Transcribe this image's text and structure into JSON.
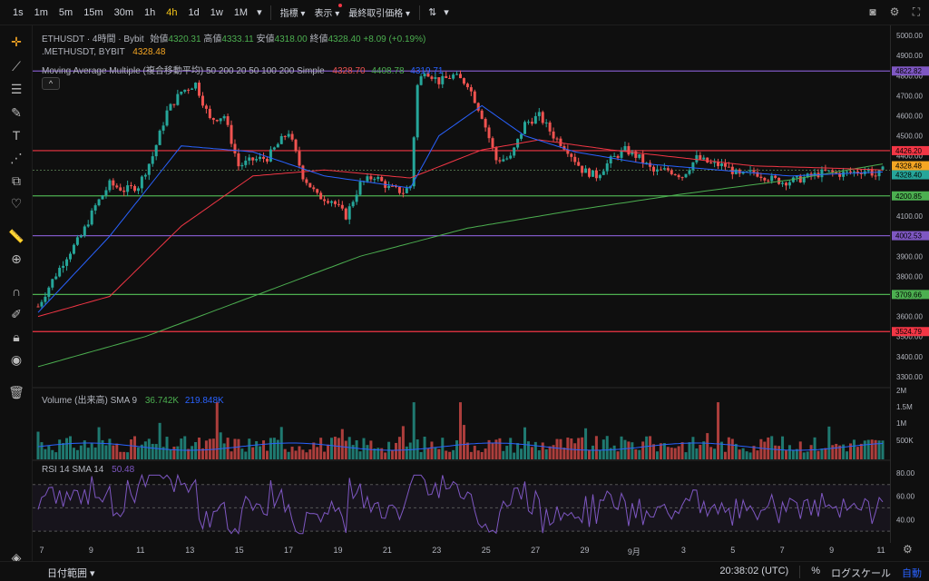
{
  "toolbar": {
    "timeframes": [
      "1s",
      "1m",
      "5m",
      "15m",
      "30m",
      "1h",
      "4h",
      "1d",
      "1w",
      "1M"
    ],
    "active_timeframe": "4h",
    "indicators_label": "指標",
    "display_label": "表示",
    "price_type_label": "最終取引価格"
  },
  "legend": {
    "symbol_line": "ETHUSDT · 4時間 · Bybit",
    "open_label": "始値",
    "open": "4320.31",
    "high_label": "高値",
    "high": "4333.11",
    "low_label": "安値",
    "low": "4318.00",
    "close_label": "終値",
    "close": "4328.40",
    "change": "+8.09 (+0.19%)",
    "compare_symbol": ".METHUSDT, BYBIT",
    "compare_value": "4328.48",
    "ma_label": "Moving Average Multiple (複合移動平均) 50 200 20 50 100 200 Simple",
    "ma_v1": "4328.70",
    "ma_v2": "4408.78",
    "ma_v3": "4319.71",
    "collapse": "^"
  },
  "volume": {
    "label": "Volume (出来高) SMA 9",
    "v1": "36.742K",
    "v2": "219.848K",
    "axis": [
      "2M",
      "1.5M",
      "1M",
      "500K"
    ]
  },
  "rsi": {
    "label": "RSI 14 SMA 14",
    "value": "50.48",
    "axis": [
      "80.00",
      "60.00",
      "40.00"
    ]
  },
  "price_axis": [
    "5000.00",
    "4900.00",
    "4800.00",
    "4700.00",
    "4600.00",
    "4500.00",
    "4400.00",
    "4300.00",
    "4200.00",
    "4100.00",
    "4000.00",
    "3900.00",
    "3800.00",
    "3700.00",
    "3600.00",
    "3500.00",
    "3400.00",
    "3300.00"
  ],
  "levels": [
    {
      "price": 4822.82,
      "label": "4822.82",
      "color": "#7e57c2"
    },
    {
      "price": 4426.2,
      "label": "4426.20",
      "color": "#f23645"
    },
    {
      "price": 4328.48,
      "label": "4328.48",
      "color": "#f5a623"
    },
    {
      "price": 4328.4,
      "label": "4328.40",
      "color": "#26a69a"
    },
    {
      "price": 4200.85,
      "label": "4200.85",
      "color": "#4caf50"
    },
    {
      "price": 4002.53,
      "label": "4002.53",
      "color": "#7e57c2"
    },
    {
      "price": 3709.66,
      "label": "3709.66",
      "color": "#4caf50"
    },
    {
      "price": 3524.79,
      "label": "3524.79",
      "color": "#f23645"
    }
  ],
  "dates": [
    "7",
    "9",
    "11",
    "13",
    "15",
    "17",
    "19",
    "21",
    "23",
    "25",
    "27",
    "29",
    "9月",
    "3",
    "5",
    "7",
    "9",
    "11"
  ],
  "bottom": {
    "date_range": "日付範囲",
    "time": "20:38:02 (UTC)",
    "percent": "%",
    "log": "ログスケール",
    "auto": "自動"
  },
  "colors": {
    "up": "#26a69a",
    "down": "#ef5350",
    "ma_blue": "#2962ff",
    "ma_red": "#f23645",
    "ma_green": "#4caf50",
    "rsi": "#7e57c2"
  },
  "chart_data": {
    "type": "candlestick",
    "price_anchors": [
      [
        0,
        3650
      ],
      [
        4,
        3780
      ],
      [
        8,
        3900
      ],
      [
        12,
        4000
      ],
      [
        16,
        4150
      ],
      [
        20,
        4260
      ],
      [
        24,
        4230
      ],
      [
        28,
        4250
      ],
      [
        32,
        4400
      ],
      [
        36,
        4620
      ],
      [
        40,
        4720
      ],
      [
        44,
        4760
      ],
      [
        48,
        4580
      ],
      [
        52,
        4600
      ],
      [
        56,
        4350
      ],
      [
        60,
        4380
      ],
      [
        64,
        4390
      ],
      [
        68,
        4480
      ],
      [
        70,
        4520
      ],
      [
        74,
        4300
      ],
      [
        78,
        4200
      ],
      [
        82,
        4180
      ],
      [
        86,
        4100
      ],
      [
        90,
        4260
      ],
      [
        94,
        4300
      ],
      [
        98,
        4240
      ],
      [
        102,
        4220
      ],
      [
        104,
        4250
      ],
      [
        106,
        4750
      ],
      [
        108,
        4830
      ],
      [
        112,
        4770
      ],
      [
        116,
        4800
      ],
      [
        120,
        4760
      ],
      [
        124,
        4600
      ],
      [
        128,
        4380
      ],
      [
        132,
        4390
      ],
      [
        136,
        4560
      ],
      [
        140,
        4600
      ],
      [
        144,
        4500
      ],
      [
        148,
        4430
      ],
      [
        152,
        4330
      ],
      [
        156,
        4300
      ],
      [
        160,
        4380
      ],
      [
        164,
        4430
      ],
      [
        168,
        4390
      ],
      [
        172,
        4320
      ],
      [
        176,
        4330
      ],
      [
        180,
        4300
      ],
      [
        184,
        4390
      ],
      [
        188,
        4360
      ],
      [
        192,
        4350
      ],
      [
        196,
        4300
      ],
      [
        200,
        4320
      ],
      [
        204,
        4290
      ],
      [
        208,
        4270
      ],
      [
        212,
        4280
      ],
      [
        216,
        4300
      ],
      [
        220,
        4320
      ],
      [
        224,
        4310
      ],
      [
        228,
        4320
      ],
      [
        232,
        4330
      ],
      [
        234,
        4300
      ],
      [
        236,
        4328
      ]
    ],
    "ma_fast_anchors": [
      [
        0,
        3620
      ],
      [
        20,
        4000
      ],
      [
        40,
        4450
      ],
      [
        60,
        4420
      ],
      [
        80,
        4300
      ],
      [
        104,
        4240
      ],
      [
        112,
        4500
      ],
      [
        124,
        4650
      ],
      [
        136,
        4500
      ],
      [
        150,
        4420
      ],
      [
        170,
        4360
      ],
      [
        190,
        4330
      ],
      [
        210,
        4300
      ],
      [
        236,
        4320
      ]
    ],
    "ma_mid_anchors": [
      [
        0,
        3600
      ],
      [
        20,
        3700
      ],
      [
        40,
        4050
      ],
      [
        60,
        4300
      ],
      [
        80,
        4330
      ],
      [
        104,
        4290
      ],
      [
        124,
        4430
      ],
      [
        140,
        4480
      ],
      [
        160,
        4430
      ],
      [
        180,
        4390
      ],
      [
        200,
        4350
      ],
      [
        220,
        4340
      ],
      [
        236,
        4330
      ]
    ],
    "ma_slow_anchors": [
      [
        0,
        3350
      ],
      [
        30,
        3500
      ],
      [
        60,
        3700
      ],
      [
        90,
        3900
      ],
      [
        120,
        4040
      ],
      [
        150,
        4130
      ],
      [
        180,
        4210
      ],
      [
        210,
        4280
      ],
      [
        236,
        4360
      ]
    ],
    "ylim": [
      3250,
      5050
    ]
  }
}
